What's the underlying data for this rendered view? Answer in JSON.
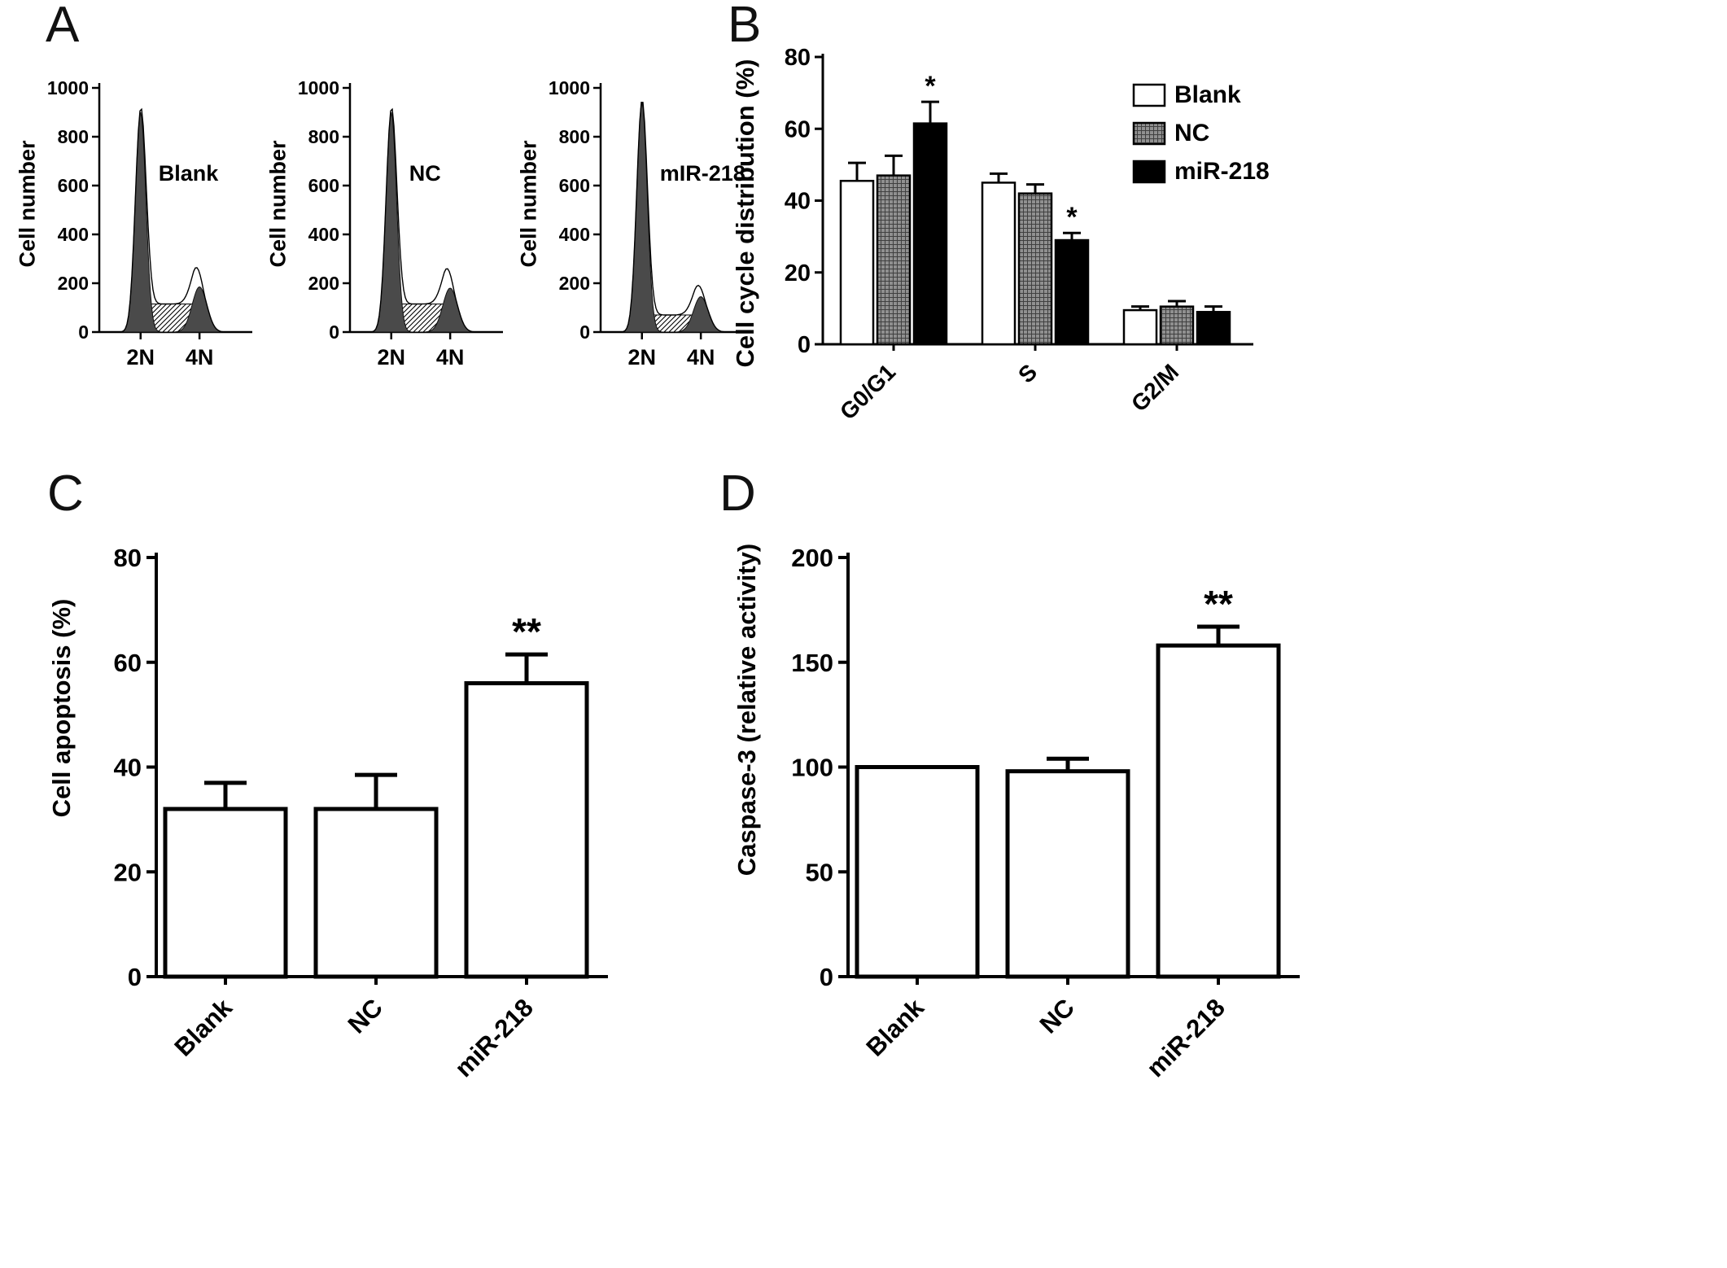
{
  "figure": {
    "background": "#ffffff"
  },
  "panel_letters": {
    "a": "A",
    "b": "B",
    "c": "C",
    "d": "D"
  },
  "colors": {
    "axis": "#000000",
    "bar_white": "#ffffff",
    "bar_hatched_gray": "#909090",
    "bar_black": "#000000",
    "flow_peak_fill": "#4a4a4a"
  },
  "chart_data": [
    {
      "panel": "A",
      "type": "area",
      "subtype": "flow-cytometry-dna-histograms",
      "ylabel": "Cell number",
      "ylim": [
        0,
        1000
      ],
      "yticks": [
        0,
        200,
        400,
        600,
        800,
        1000
      ],
      "xticks": [
        "2N",
        "4N"
      ],
      "plots": [
        {
          "label": "Blank",
          "g1_peak": 900,
          "s_level": 115,
          "g2_peak": 185
        },
        {
          "label": "NC",
          "g1_peak": 900,
          "s_level": 115,
          "g2_peak": 180
        },
        {
          "label": "mIR-218",
          "g1_peak": 940,
          "s_level": 70,
          "g2_peak": 145
        }
      ]
    },
    {
      "panel": "B",
      "type": "bar",
      "ylabel": "Cell cycle distribution (%)",
      "categories": [
        "G0/G1",
        "S",
        "G2/M"
      ],
      "series": [
        {
          "name": "Blank",
          "style": "white",
          "values": [
            45.5,
            45,
            9.5
          ],
          "errors": [
            5,
            2.5,
            1
          ]
        },
        {
          "name": "NC",
          "style": "hatched",
          "values": [
            47,
            42,
            10.5
          ],
          "errors": [
            5.5,
            2.5,
            1.5
          ]
        },
        {
          "name": "miR-218",
          "style": "black",
          "values": [
            61.5,
            29,
            9
          ],
          "errors": [
            6,
            2,
            1.5
          ]
        }
      ],
      "significance": [
        {
          "category": "G0/G1",
          "series": "miR-218",
          "label": "*"
        },
        {
          "category": "S",
          "series": "miR-218",
          "label": "*"
        }
      ],
      "ylim": [
        0,
        80
      ],
      "yticks": [
        0,
        20,
        40,
        60,
        80
      ],
      "legend": {
        "position": "top-right",
        "items": [
          "Blank",
          "NC",
          "miR-218"
        ]
      },
      "grid": false
    },
    {
      "panel": "C",
      "type": "bar",
      "ylabel": "Cell apoptosis (%)",
      "categories": [
        "Blank",
        "NC",
        "miR-218"
      ],
      "values": [
        32,
        32,
        56
      ],
      "errors": [
        5,
        6.5,
        5.5
      ],
      "significance": [
        {
          "category": "miR-218",
          "label": "**"
        }
      ],
      "ylim": [
        0,
        80
      ],
      "yticks": [
        0,
        20,
        40,
        60,
        80
      ],
      "bar_style": "white",
      "grid": false
    },
    {
      "panel": "D",
      "type": "bar",
      "ylabel": "Caspase-3 (relative activity)",
      "categories": [
        "Blank",
        "NC",
        "miR-218"
      ],
      "values": [
        100,
        98,
        158
      ],
      "errors": [
        0,
        6,
        9
      ],
      "significance": [
        {
          "category": "miR-218",
          "label": "**"
        }
      ],
      "ylim": [
        0,
        200
      ],
      "yticks": [
        0,
        50,
        100,
        150,
        200
      ],
      "bar_style": "white",
      "grid": false
    }
  ]
}
